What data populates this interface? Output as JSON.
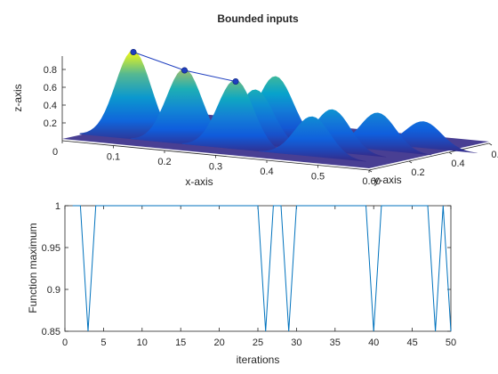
{
  "chart_data": [
    {
      "type": "surface",
      "title": "Bounded inputs",
      "xlabel": "x-axis",
      "ylabel": "y-axis",
      "zlabel": "z-axis",
      "x_ticks": [
        "0",
        "0.1",
        "0.2",
        "0.3",
        "0.4",
        "0.5",
        "0.6"
      ],
      "y_ticks": [
        "0",
        "0.2",
        "0.4",
        "0.6"
      ],
      "z_ticks": [
        "0.2",
        "0.4",
        "0.6",
        "0.8"
      ],
      "xlim": [
        0,
        0.6
      ],
      "ylim": [
        0,
        0.6
      ],
      "zlim": [
        0,
        1
      ],
      "colormap": "parula",
      "peaks": [
        {
          "x": 0.1,
          "y": 0.1,
          "z": 1.0
        },
        {
          "x": 0.2,
          "y": 0.1,
          "z": 0.85
        },
        {
          "x": 0.3,
          "y": 0.1,
          "z": 0.78
        },
        {
          "x": 0.3,
          "y": 0.2,
          "z": 0.62
        },
        {
          "x": 0.3,
          "y": 0.3,
          "z": 0.72
        },
        {
          "x": 0.45,
          "y": 0.1,
          "z": 0.45
        },
        {
          "x": 0.45,
          "y": 0.2,
          "z": 0.48
        },
        {
          "x": 0.5,
          "y": 0.3,
          "z": 0.42
        },
        {
          "x": 0.55,
          "y": 0.4,
          "z": 0.3
        }
      ],
      "markers": [
        {
          "x": 0.1,
          "y": 0.1,
          "z": 1.0
        },
        {
          "x": 0.2,
          "y": 0.1,
          "z": 0.85
        },
        {
          "x": 0.3,
          "y": 0.1,
          "z": 0.78
        }
      ],
      "marker_color": "#1f3fbf"
    },
    {
      "type": "line",
      "title": "",
      "xlabel": "iterations",
      "ylabel": "Function maximum",
      "xlim": [
        0,
        50
      ],
      "ylim": [
        0.85,
        1
      ],
      "x_ticks": [
        "0",
        "5",
        "10",
        "15",
        "20",
        "25",
        "30",
        "35",
        "40",
        "45",
        "50"
      ],
      "y_ticks": [
        "0.85",
        "0.9",
        "0.95",
        "1"
      ],
      "series": [
        {
          "color": "#0072BD",
          "x": [
            1,
            2,
            3,
            4,
            5,
            6,
            7,
            8,
            9,
            10,
            11,
            12,
            13,
            14,
            15,
            16,
            17,
            18,
            19,
            20,
            21,
            22,
            23,
            24,
            25,
            26,
            27,
            28,
            29,
            30,
            31,
            32,
            33,
            34,
            35,
            36,
            37,
            38,
            39,
            40,
            41,
            42,
            43,
            44,
            45,
            46,
            47,
            48,
            49,
            50
          ],
          "values": [
            1,
            1,
            0.85,
            1,
            1,
            1,
            1,
            1,
            1,
            1,
            1,
            1,
            1,
            1,
            1,
            1,
            1,
            1,
            1,
            1,
            1,
            1,
            1,
            1,
            1,
            0.85,
            1,
            1,
            0.85,
            1,
            1,
            1,
            1,
            1,
            1,
            1,
            1,
            1,
            1,
            0.85,
            1,
            1,
            1,
            1,
            1,
            1,
            1,
            0.85,
            1,
            0.85
          ]
        }
      ]
    }
  ]
}
